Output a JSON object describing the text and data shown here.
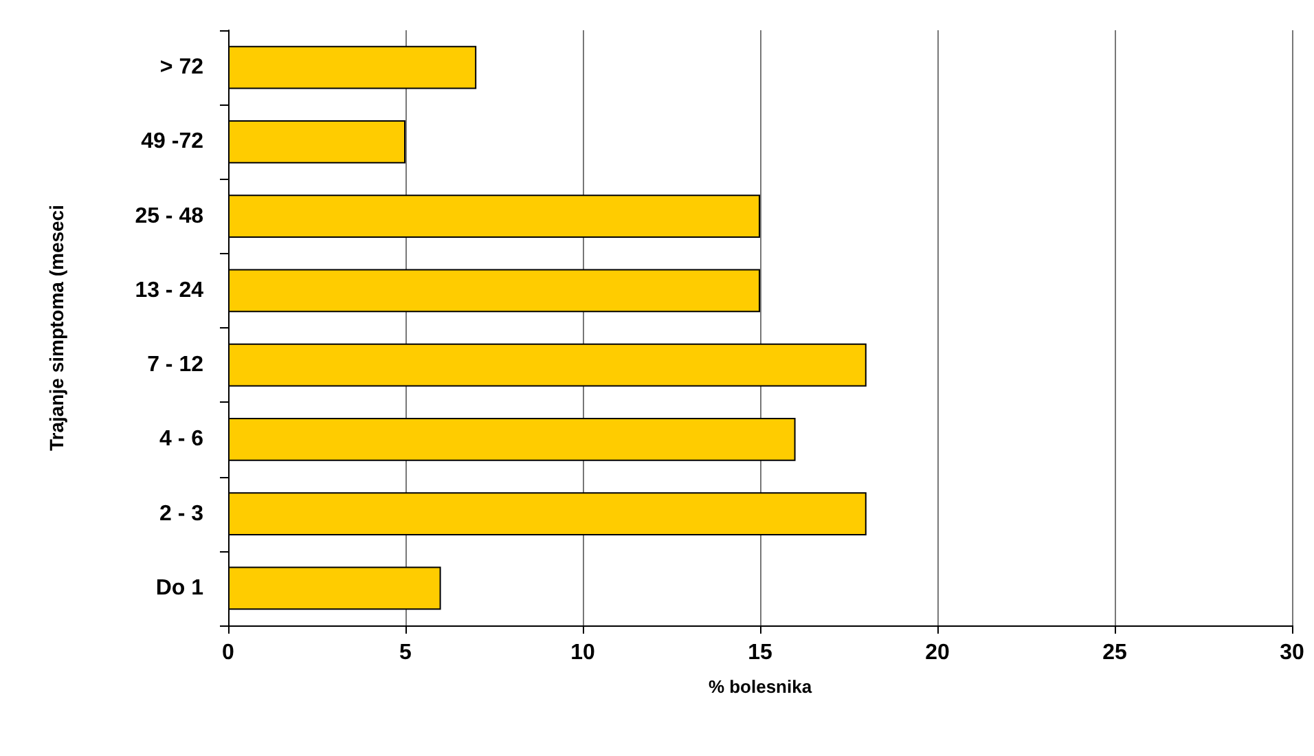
{
  "chart_data": {
    "type": "bar",
    "orientation": "horizontal",
    "xlabel": "% bolesnika",
    "ylabel": "Trajanje simptoma (meseci",
    "categories": [
      "> 72",
      "49 -72",
      "25 - 48",
      "13 - 24",
      "7 - 12",
      "4 - 6",
      "2 - 3",
      "Do 1"
    ],
    "values": [
      7,
      5,
      15,
      15,
      18,
      16,
      18,
      6
    ],
    "color": "#ffcc00",
    "xlim": [
      0,
      30
    ],
    "xticks": [
      0,
      5,
      10,
      15,
      20,
      25,
      30
    ],
    "grid": "x"
  }
}
